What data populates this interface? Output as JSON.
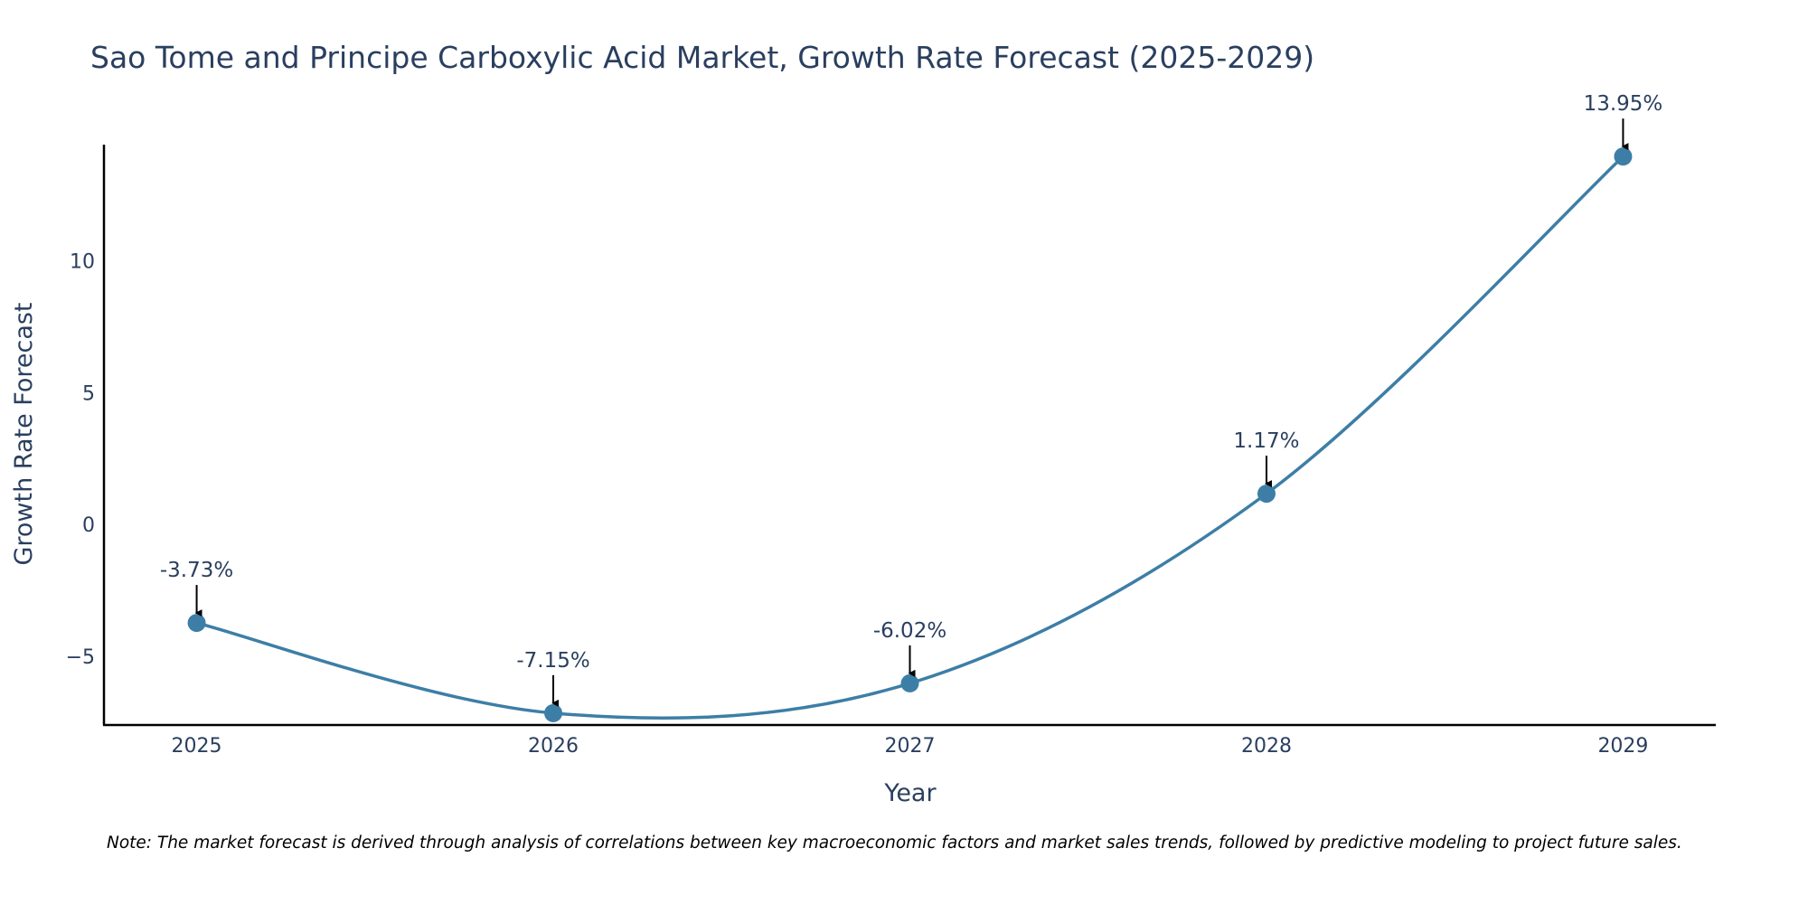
{
  "chart_data": {
    "type": "line",
    "title": "Sao Tome and Principe Carboxylic Acid Market, Growth Rate Forecast (2025-2029)",
    "xlabel": "Year",
    "ylabel": "Growth Rate Forecast",
    "categories": [
      "2025",
      "2026",
      "2027",
      "2028",
      "2029"
    ],
    "values": [
      -3.73,
      -7.15,
      -6.02,
      1.17,
      13.95
    ],
    "annotations": [
      "-3.73%",
      "-7.15%",
      "-6.02%",
      "1.17%",
      "13.95%"
    ],
    "y_ticks": [
      -5,
      0,
      5,
      10
    ],
    "y_tick_labels": [
      "−5",
      "0",
      "5",
      "10"
    ],
    "ylim": [
      -7.6,
      14.4
    ],
    "xlim": [
      -0.26,
      4.26
    ],
    "line_color": "#3d7ea6",
    "marker_color": "#3d7ea6",
    "note": "Note: The market forecast is derived through analysis of correlations between key macroeconomic factors and market sales trends, followed by predictive modeling to project future sales."
  }
}
